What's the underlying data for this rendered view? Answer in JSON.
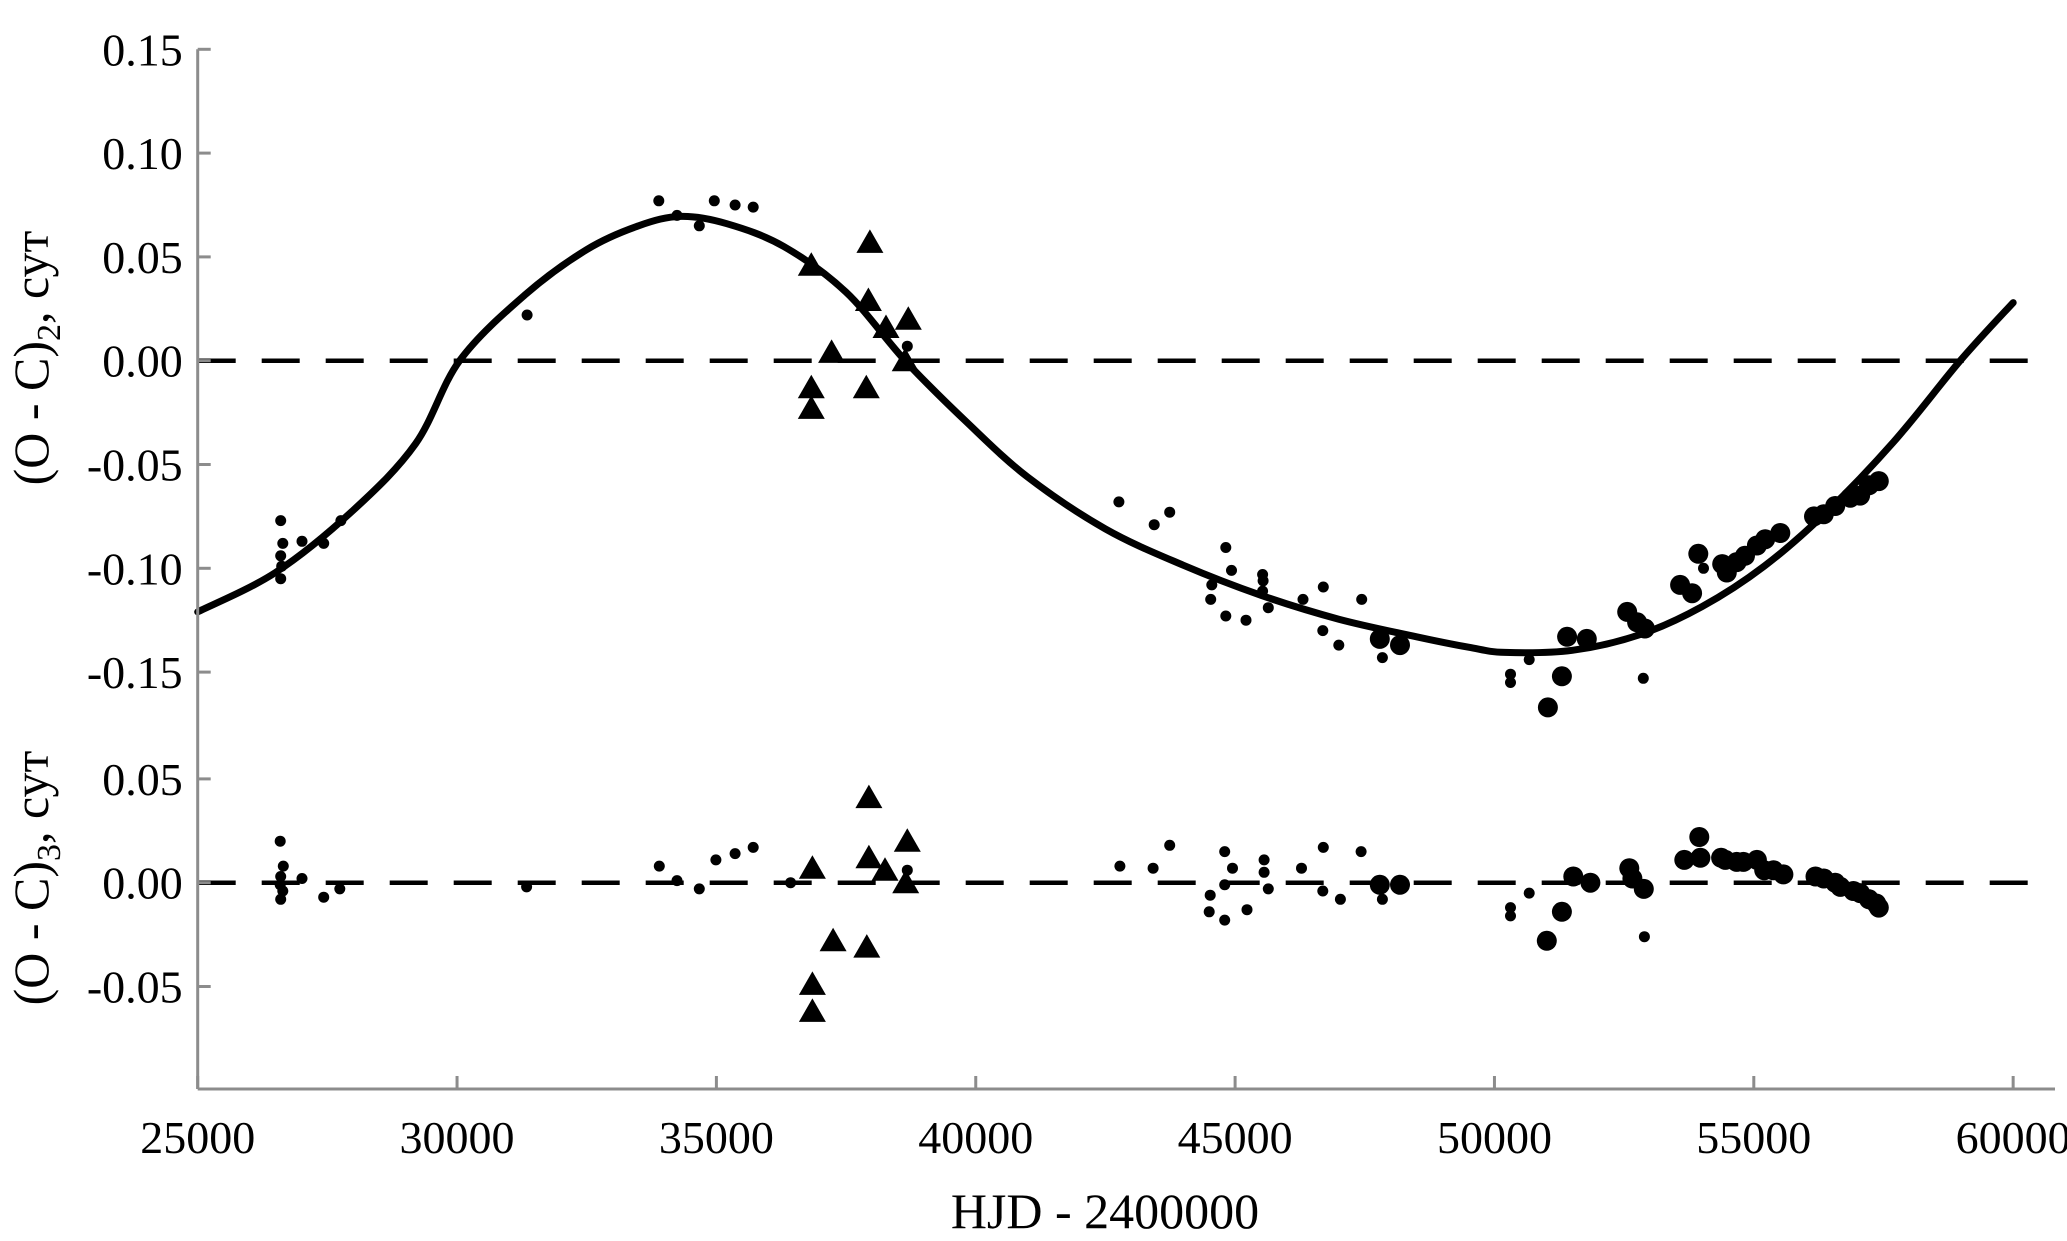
{
  "figure": {
    "background": "#ffffff",
    "colors": {
      "ink": "#000000",
      "axis_line": "#8c8c8c"
    },
    "x_axis": {
      "label": "HJD - 2400000",
      "lim": [
        25000,
        60000
      ],
      "tick_values": [
        25000,
        30000,
        35000,
        40000,
        45000,
        50000,
        55000,
        60000
      ],
      "tick_labels": [
        "25000",
        "30000",
        "35000",
        "40000",
        "45000",
        "50000",
        "55000",
        "60000"
      ]
    }
  },
  "chart_data": [
    {
      "type": "scatter",
      "panel": "top",
      "title": "",
      "ylabel": {
        "prefix": "(O - C)",
        "sub": "2",
        "suffix": ", сут"
      },
      "xlabel": "HJD - 2400000",
      "xlim": [
        25000,
        60000
      ],
      "ylim": [
        -0.15,
        0.15
      ],
      "grid": false,
      "legend": "none",
      "ytick_values": [
        0.15,
        0.1,
        0.05,
        0.0,
        -0.05,
        -0.1,
        -0.15
      ],
      "ytick_labels": [
        "0.15",
        "0.10",
        "0.05",
        "0.00",
        "-0.05",
        "-0.10",
        "-0.15"
      ],
      "zero_dashed_line": 0.0,
      "series": [
        {
          "name": "small-dots",
          "marker": "dot-small",
          "points": [
            [
              26600,
              -0.077
            ],
            [
              26640,
              -0.088
            ],
            [
              26600,
              -0.094
            ],
            [
              26620,
              -0.099
            ],
            [
              26600,
              -0.105
            ],
            [
              27010,
              -0.087
            ],
            [
              27430,
              -0.088
            ],
            [
              27760,
              -0.077
            ],
            [
              31350,
              0.022
            ],
            [
              33890,
              0.077
            ],
            [
              34240,
              0.07
            ],
            [
              34670,
              0.065
            ],
            [
              34960,
              0.077
            ],
            [
              35360,
              0.075
            ],
            [
              35710,
              0.074
            ],
            [
              38680,
              0.007
            ],
            [
              42760,
              -0.068
            ],
            [
              43440,
              -0.079
            ],
            [
              43740,
              -0.073
            ],
            [
              44530,
              -0.115
            ],
            [
              44550,
              -0.108
            ],
            [
              44820,
              -0.09
            ],
            [
              44820,
              -0.123
            ],
            [
              44930,
              -0.101
            ],
            [
              45210,
              -0.125
            ],
            [
              45530,
              -0.103
            ],
            [
              45540,
              -0.106
            ],
            [
              45530,
              -0.111
            ],
            [
              45640,
              -0.119
            ],
            [
              46310,
              -0.115
            ],
            [
              46690,
              -0.13
            ],
            [
              46700,
              -0.109
            ],
            [
              47000,
              -0.137
            ],
            [
              47440,
              -0.115
            ],
            [
              47840,
              -0.143
            ],
            [
              50310,
              -0.151
            ],
            [
              50310,
              -0.155
            ],
            [
              50670,
              -0.144
            ],
            [
              52870,
              -0.153
            ],
            [
              54030,
              -0.1
            ]
          ]
        },
        {
          "name": "large-dots",
          "marker": "dot-large",
          "points": [
            [
              47790,
              -0.134
            ],
            [
              48180,
              -0.137
            ],
            [
              51030,
              -0.167
            ],
            [
              51300,
              -0.152
            ],
            [
              51400,
              -0.133
            ],
            [
              51780,
              -0.134
            ],
            [
              52560,
              -0.121
            ],
            [
              52750,
              -0.126
            ],
            [
              52900,
              -0.129
            ],
            [
              53580,
              -0.108
            ],
            [
              53810,
              -0.112
            ],
            [
              53930,
              -0.093
            ],
            [
              54390,
              -0.098
            ],
            [
              54480,
              -0.102
            ],
            [
              54670,
              -0.097
            ],
            [
              54830,
              -0.094
            ],
            [
              55060,
              -0.089
            ],
            [
              55220,
              -0.086
            ],
            [
              55510,
              -0.083
            ],
            [
              56160,
              -0.075
            ],
            [
              56350,
              -0.074
            ],
            [
              56570,
              -0.07
            ],
            [
              56860,
              -0.066
            ],
            [
              57050,
              -0.065
            ],
            [
              57220,
              -0.06
            ],
            [
              57410,
              -0.058
            ]
          ]
        },
        {
          "name": "triangles",
          "marker": "triangle",
          "points": [
            [
              36830,
              0.046
            ],
            [
              37960,
              0.057
            ],
            [
              37930,
              0.029
            ],
            [
              38270,
              0.016
            ],
            [
              38700,
              0.02
            ],
            [
              38640,
              0.0
            ],
            [
              37220,
              0.004
            ],
            [
              36830,
              -0.013
            ],
            [
              36830,
              -0.023
            ],
            [
              37890,
              -0.013
            ]
          ]
        },
        {
          "name": "fit-curve",
          "marker": "line",
          "points": [
            [
              25000,
              -0.121
            ],
            [
              26500,
              -0.102
            ],
            [
              28000,
              -0.072
            ],
            [
              29200,
              -0.04
            ],
            [
              30050,
              0.0
            ],
            [
              31300,
              0.0315
            ],
            [
              32500,
              0.0535
            ],
            [
              33500,
              0.065
            ],
            [
              34320,
              0.0695
            ],
            [
              35200,
              0.066
            ],
            [
              36300,
              0.055
            ],
            [
              37500,
              0.033
            ],
            [
              38640,
              0.0
            ],
            [
              39800,
              -0.029
            ],
            [
              41000,
              -0.056
            ],
            [
              42500,
              -0.081
            ],
            [
              44000,
              -0.0985
            ],
            [
              45500,
              -0.113
            ],
            [
              47000,
              -0.1245
            ],
            [
              48500,
              -0.133
            ],
            [
              49500,
              -0.138
            ],
            [
              50205,
              -0.1405
            ],
            [
              51500,
              -0.1395
            ],
            [
              52800,
              -0.132
            ],
            [
              54000,
              -0.1185
            ],
            [
              55200,
              -0.099
            ],
            [
              56400,
              -0.073
            ],
            [
              57700,
              -0.039
            ],
            [
              58980,
              0.0
            ],
            [
              60000,
              0.028
            ]
          ]
        }
      ]
    },
    {
      "type": "scatter",
      "panel": "bottom",
      "title": "",
      "ylabel": {
        "prefix": "(O - C)",
        "sub": "3",
        "suffix": ", сут"
      },
      "xlabel": "HJD - 2400000",
      "xlim": [
        25000,
        60000
      ],
      "ylim": [
        -0.09,
        0.09
      ],
      "grid": false,
      "legend": "none",
      "ytick_values": [
        0.05,
        0.0,
        -0.05
      ],
      "ytick_labels": [
        "0.05",
        "0.00",
        "-0.05"
      ],
      "zero_dashed_line": 0.0,
      "series": [
        {
          "name": "small-dots",
          "marker": "dot-small",
          "points": [
            [
              26590,
              0.02
            ],
            [
              26650,
              0.008
            ],
            [
              26600,
              0.003
            ],
            [
              26590,
              -0.001
            ],
            [
              26640,
              -0.004
            ],
            [
              26600,
              -0.008
            ],
            [
              27010,
              0.002
            ],
            [
              27430,
              -0.007
            ],
            [
              27740,
              -0.003
            ],
            [
              31340,
              -0.002
            ],
            [
              33900,
              0.008
            ],
            [
              34240,
              0.001
            ],
            [
              34670,
              -0.003
            ],
            [
              34990,
              0.011
            ],
            [
              35360,
              0.014
            ],
            [
              35710,
              0.017
            ],
            [
              36430,
              0.0
            ],
            [
              38680,
              0.006
            ],
            [
              42780,
              0.008
            ],
            [
              43420,
              0.007
            ],
            [
              43740,
              0.018
            ],
            [
              44500,
              -0.014
            ],
            [
              44520,
              -0.006
            ],
            [
              44800,
              0.015
            ],
            [
              44800,
              -0.001
            ],
            [
              44800,
              -0.018
            ],
            [
              44950,
              0.007
            ],
            [
              45230,
              -0.013
            ],
            [
              45560,
              0.011
            ],
            [
              45560,
              0.005
            ],
            [
              45640,
              -0.003
            ],
            [
              46280,
              0.007
            ],
            [
              46700,
              0.017
            ],
            [
              46690,
              -0.004
            ],
            [
              47030,
              -0.008
            ],
            [
              47430,
              0.015
            ],
            [
              47840,
              -0.008
            ],
            [
              50310,
              -0.012
            ],
            [
              50310,
              -0.016
            ],
            [
              50670,
              -0.005
            ],
            [
              52890,
              -0.026
            ]
          ]
        },
        {
          "name": "large-dots",
          "marker": "dot-large",
          "points": [
            [
              47790,
              -0.001
            ],
            [
              48180,
              -0.001
            ],
            [
              51010,
              -0.028
            ],
            [
              51300,
              -0.014
            ],
            [
              51520,
              0.003
            ],
            [
              51850,
              0.0
            ],
            [
              52600,
              0.007
            ],
            [
              52660,
              0.002
            ],
            [
              52880,
              -0.003
            ],
            [
              53660,
              0.011
            ],
            [
              53950,
              0.022
            ],
            [
              53970,
              0.012
            ],
            [
              54370,
              0.012
            ],
            [
              54450,
              0.011
            ],
            [
              54670,
              0.01
            ],
            [
              54800,
              0.01
            ],
            [
              55060,
              0.011
            ],
            [
              55200,
              0.006
            ],
            [
              55380,
              0.006
            ],
            [
              55570,
              0.004
            ],
            [
              56190,
              0.003
            ],
            [
              56350,
              0.002
            ],
            [
              56570,
              0.0
            ],
            [
              56670,
              -0.002
            ],
            [
              56920,
              -0.004
            ],
            [
              57050,
              -0.005
            ],
            [
              57220,
              -0.008
            ],
            [
              57360,
              -0.01
            ],
            [
              57410,
              -0.012
            ]
          ]
        },
        {
          "name": "triangles",
          "marker": "triangle",
          "points": [
            [
              36850,
              0.007
            ],
            [
              37940,
              0.041
            ],
            [
              37940,
              0.012
            ],
            [
              38250,
              0.006
            ],
            [
              38680,
              0.02
            ],
            [
              38650,
              0.0
            ],
            [
              37250,
              -0.028
            ],
            [
              37900,
              -0.031
            ],
            [
              36850,
              -0.049
            ],
            [
              36850,
              -0.062
            ]
          ]
        }
      ]
    }
  ]
}
